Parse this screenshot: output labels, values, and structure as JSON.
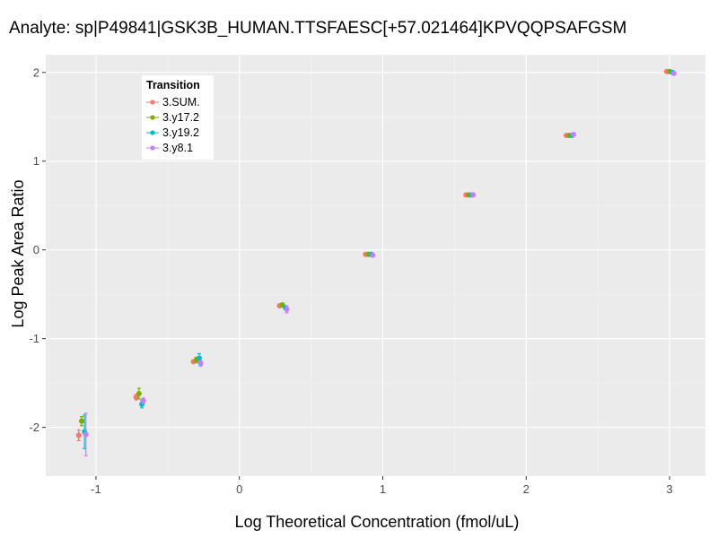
{
  "chart_data": {
    "type": "scatter",
    "title": "Analyte: sp|P49841|GSK3B_HUMAN.TTSFAESC[+57.021464]KPVQQPSAFGSM",
    "xlabel": "Log Theoretical Concentration (fmol/uL)",
    "ylabel": "Log Peak Area Ratio",
    "xlim": [
      -1.35,
      3.25
    ],
    "ylim": [
      -2.55,
      2.2
    ],
    "x_ticks": [
      -1,
      0,
      1,
      2,
      3
    ],
    "y_ticks": [
      -2,
      -1,
      0,
      1,
      2
    ],
    "grid": true,
    "legend": {
      "title": "Transition",
      "position": "top-left-inside"
    },
    "series": [
      {
        "name": "3.SUM.",
        "color": "#F8766D",
        "points": [
          {
            "x": -1.12,
            "y": -2.09,
            "err": 0.06
          },
          {
            "x": -0.72,
            "y": -1.66,
            "err": 0.03
          },
          {
            "x": -0.32,
            "y": -1.26,
            "err": 0.02
          },
          {
            "x": 0.28,
            "y": -0.63,
            "err": 0.02
          },
          {
            "x": 0.88,
            "y": -0.05,
            "err": 0.01
          },
          {
            "x": 1.58,
            "y": 0.62,
            "err": 0.01
          },
          {
            "x": 2.28,
            "y": 1.29,
            "err": 0.01
          },
          {
            "x": 2.98,
            "y": 2.01,
            "err": 0.01
          }
        ]
      },
      {
        "name": "3.y17.2",
        "color": "#7CAE00",
        "points": [
          {
            "x": -1.1,
            "y": -1.93,
            "err": 0.05
          },
          {
            "x": -0.7,
            "y": -1.62,
            "err": 0.06
          },
          {
            "x": -0.3,
            "y": -1.24,
            "err": 0.03
          },
          {
            "x": 0.3,
            "y": -0.62,
            "err": 0.02
          },
          {
            "x": 0.9,
            "y": -0.05,
            "err": 0.01
          },
          {
            "x": 1.6,
            "y": 0.62,
            "err": 0.01
          },
          {
            "x": 2.3,
            "y": 1.29,
            "err": 0.01
          },
          {
            "x": 3.0,
            "y": 2.01,
            "err": 0.01
          }
        ]
      },
      {
        "name": "3.y19.2",
        "color": "#00BFC4",
        "points": [
          {
            "x": -1.08,
            "y": -2.05,
            "err": 0.19
          },
          {
            "x": -0.68,
            "y": -1.74,
            "err": 0.04
          },
          {
            "x": -0.28,
            "y": -1.22,
            "err": 0.05
          },
          {
            "x": 0.32,
            "y": -0.65,
            "err": 0.02
          },
          {
            "x": 0.92,
            "y": -0.05,
            "err": 0.02
          },
          {
            "x": 1.62,
            "y": 0.62,
            "err": 0.01
          },
          {
            "x": 2.32,
            "y": 1.29,
            "err": 0.01
          },
          {
            "x": 3.02,
            "y": 2.0,
            "err": 0.01
          }
        ]
      },
      {
        "name": "3.y8.1",
        "color": "#C77CFF",
        "points": [
          {
            "x": -1.07,
            "y": -2.08,
            "err": 0.24
          },
          {
            "x": -0.67,
            "y": -1.7,
            "err": 0.03
          },
          {
            "x": -0.27,
            "y": -1.28,
            "err": 0.03
          },
          {
            "x": 0.33,
            "y": -0.67,
            "err": 0.04
          },
          {
            "x": 0.93,
            "y": -0.06,
            "err": 0.01
          },
          {
            "x": 1.63,
            "y": 0.62,
            "err": 0.01
          },
          {
            "x": 2.33,
            "y": 1.3,
            "err": 0.01
          },
          {
            "x": 3.03,
            "y": 1.99,
            "err": 0.01
          }
        ]
      }
    ]
  }
}
